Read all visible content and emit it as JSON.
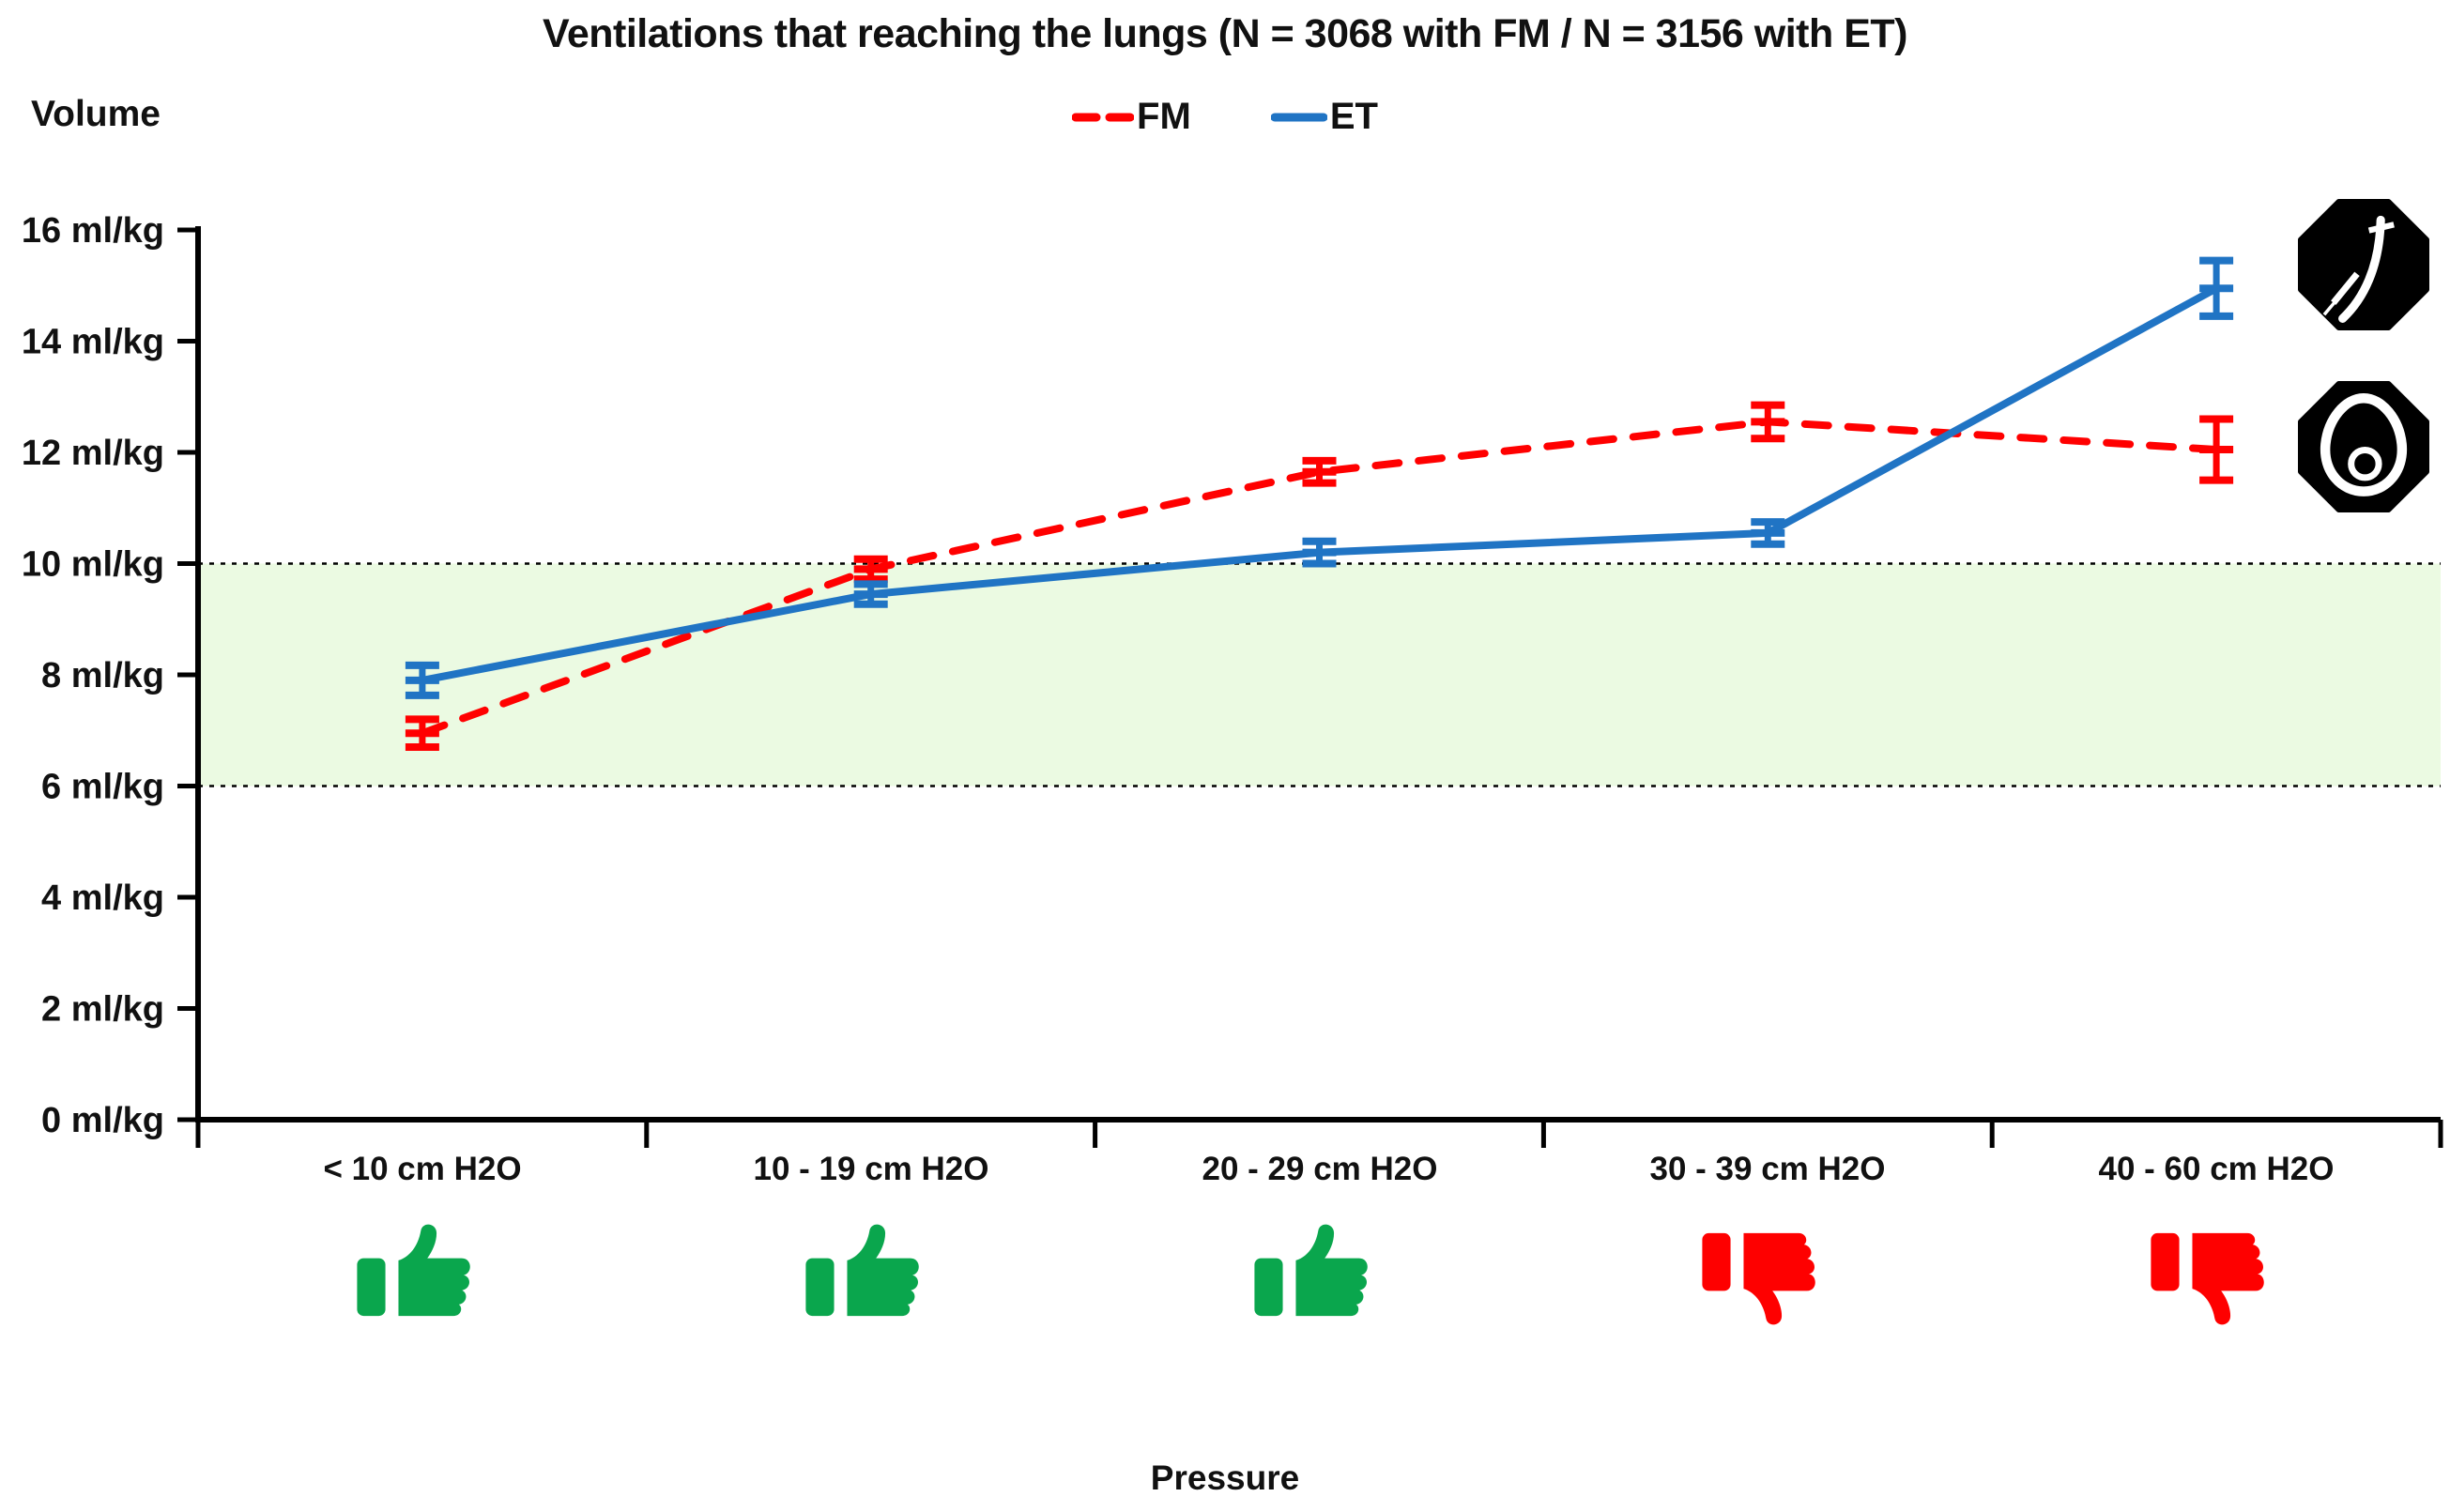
{
  "chart_data": {
    "type": "line",
    "title": "Ventilations that reaching the lungs (N = 3068 with FM / N = 3156 with ET)",
    "xlabel": "Pressure",
    "ylabel": "Volume",
    "categories": [
      "< 10 cm H2O",
      "10 - 19 cm H2O",
      "20 - 29 cm H2O",
      "30 - 39 cm H2O",
      "40 - 60 cm H2O"
    ],
    "y_tick_labels": [
      "0 ml/kg",
      "2 ml/kg",
      "4 ml/kg",
      "6 ml/kg",
      "8 ml/kg",
      "10 ml/kg",
      "12 ml/kg",
      "14 ml/kg",
      "16 ml/kg"
    ],
    "y_tick_values": [
      0,
      2,
      4,
      6,
      8,
      10,
      12,
      14,
      16
    ],
    "ylim": [
      0,
      16
    ],
    "grid": "off",
    "legend_position": "top-center",
    "target_band": {
      "from": 6,
      "to": 10,
      "color": "#ebfae2",
      "border_style": "dotted"
    },
    "series": [
      {
        "name": "FM",
        "color": "#ff0000",
        "style": "dashed",
        "values": [
          6.95,
          9.9,
          11.65,
          12.55,
          12.05
        ],
        "errors": [
          0.25,
          0.18,
          0.2,
          0.3,
          0.55
        ]
      },
      {
        "name": "ET",
        "color": "#2074c4",
        "style": "solid",
        "values": [
          7.9,
          9.45,
          10.2,
          10.55,
          14.95
        ],
        "errors": [
          0.27,
          0.18,
          0.2,
          0.2,
          0.5
        ]
      }
    ],
    "category_ratings": [
      "good",
      "good",
      "good",
      "bad",
      "bad"
    ]
  },
  "icons": {
    "thumb_up": "thumb-up-icon",
    "thumb_down": "thumb-down-icon",
    "thumb_up_color": "#0aa64d",
    "thumb_down_color": "#fe0000",
    "badge_top": "endotracheal-tube-icon",
    "badge_bottom": "face-mask-icon",
    "badge_color": "#000000"
  }
}
